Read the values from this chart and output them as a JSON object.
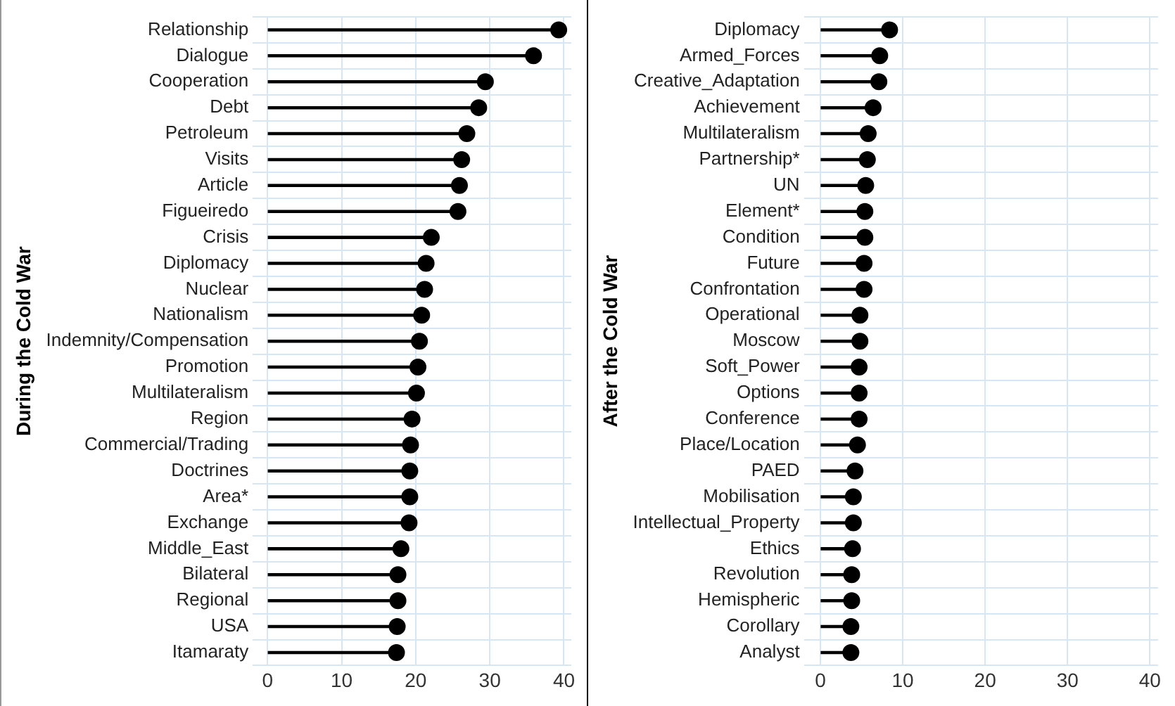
{
  "chart_data": [
    {
      "type": "lollipop",
      "orientation": "horizontal",
      "ylabel": "During the Cold War",
      "color": "#000000",
      "marker": "circle",
      "grid": true,
      "xlim": [
        -2,
        41
      ],
      "xticks": [
        0,
        10,
        20,
        30,
        40
      ],
      "categories": [
        "Relationship",
        "Dialogue",
        "Cooperation",
        "Debt",
        "Petroleum",
        "Visits",
        "Article",
        "Figueiredo",
        "Crisis",
        "Diplomacy",
        "Nuclear",
        "Nationalism",
        "Indemnity/Compensation",
        "Promotion",
        "Multilateralism",
        "Region",
        "Commercial/Trading",
        "Doctrines",
        "Area*",
        "Exchange",
        "Middle_East",
        "Bilateral",
        "Regional",
        "USA",
        "Itamaraty"
      ],
      "values": [
        39.3,
        35.9,
        29.4,
        28.5,
        26.9,
        26.2,
        25.9,
        25.7,
        22.1,
        21.4,
        21.2,
        20.8,
        20.5,
        20.3,
        20.1,
        19.5,
        19.3,
        19.2,
        19.2,
        19.1,
        18.0,
        17.6,
        17.6,
        17.5,
        17.4
      ]
    },
    {
      "type": "lollipop",
      "orientation": "horizontal",
      "ylabel": "After the Cold War",
      "color": "#000000",
      "marker": "circle",
      "grid": true,
      "xlim": [
        -2,
        41
      ],
      "xticks": [
        0,
        10,
        20,
        30,
        40
      ],
      "categories": [
        "Diplomacy",
        "Armed_Forces",
        "Creative_Adaptation",
        "Achievement",
        "Multilateralism",
        "Partnership*",
        "UN",
        "Element*",
        "Condition",
        "Future",
        "Confrontation",
        "Operational",
        "Moscow",
        "Soft_Power",
        "Options",
        "Conference",
        "Place/Location",
        "PAED",
        "Mobilisation",
        "Intellectual_Property",
        "Ethics",
        "Revolution",
        "Hemispheric",
        "Corollary",
        "Analyst"
      ],
      "values": [
        8.4,
        7.2,
        7.1,
        6.4,
        5.8,
        5.7,
        5.5,
        5.4,
        5.4,
        5.3,
        5.3,
        4.8,
        4.8,
        4.7,
        4.7,
        4.7,
        4.5,
        4.2,
        4.0,
        4.0,
        3.9,
        3.8,
        3.8,
        3.7,
        3.7
      ]
    }
  ]
}
